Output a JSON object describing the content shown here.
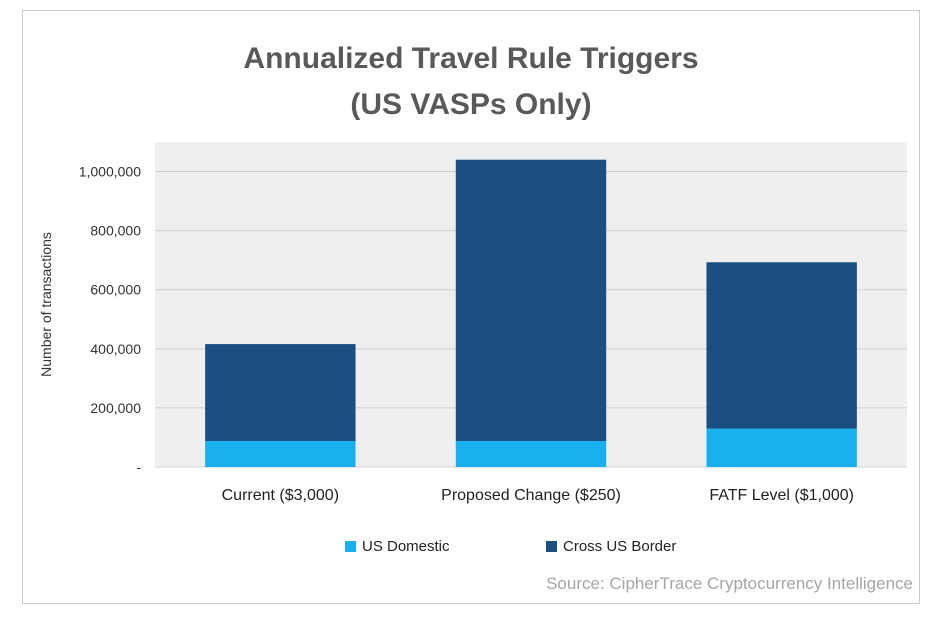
{
  "title_line1": "Annualized Travel Rule Triggers",
  "title_line2": "(US VASPs Only)",
  "source": "Source: CipherTrace Cryptocurrency Intelligence",
  "colors": {
    "domestic": "#1ab0ef",
    "cross": "#1a4f80",
    "plot_bg": "#efefef",
    "grid": "#d0d0d0"
  },
  "chart_data": {
    "type": "bar",
    "stacked": true,
    "title": "Annualized Travel Rule Triggers (US VASPs Only)",
    "xlabel": "",
    "ylabel": "Number of transactions",
    "ylim": [
      0,
      1100000
    ],
    "yticks": [
      0,
      200000,
      400000,
      600000,
      800000,
      1000000
    ],
    "ytick_labels": [
      "-",
      "200,000",
      "400,000",
      "600,000",
      "800,000",
      "1,000,000"
    ],
    "grid": true,
    "legend_position": "bottom",
    "categories": [
      "Current ($3,000)",
      "Proposed Change ($250)",
      "FATF Level ($1,000)"
    ],
    "series": [
      {
        "name": "US Domestic",
        "values": [
          88000,
          88000,
          130000
        ]
      },
      {
        "name": "Cross US Border",
        "values": [
          328000,
          952000,
          563000
        ]
      }
    ]
  }
}
